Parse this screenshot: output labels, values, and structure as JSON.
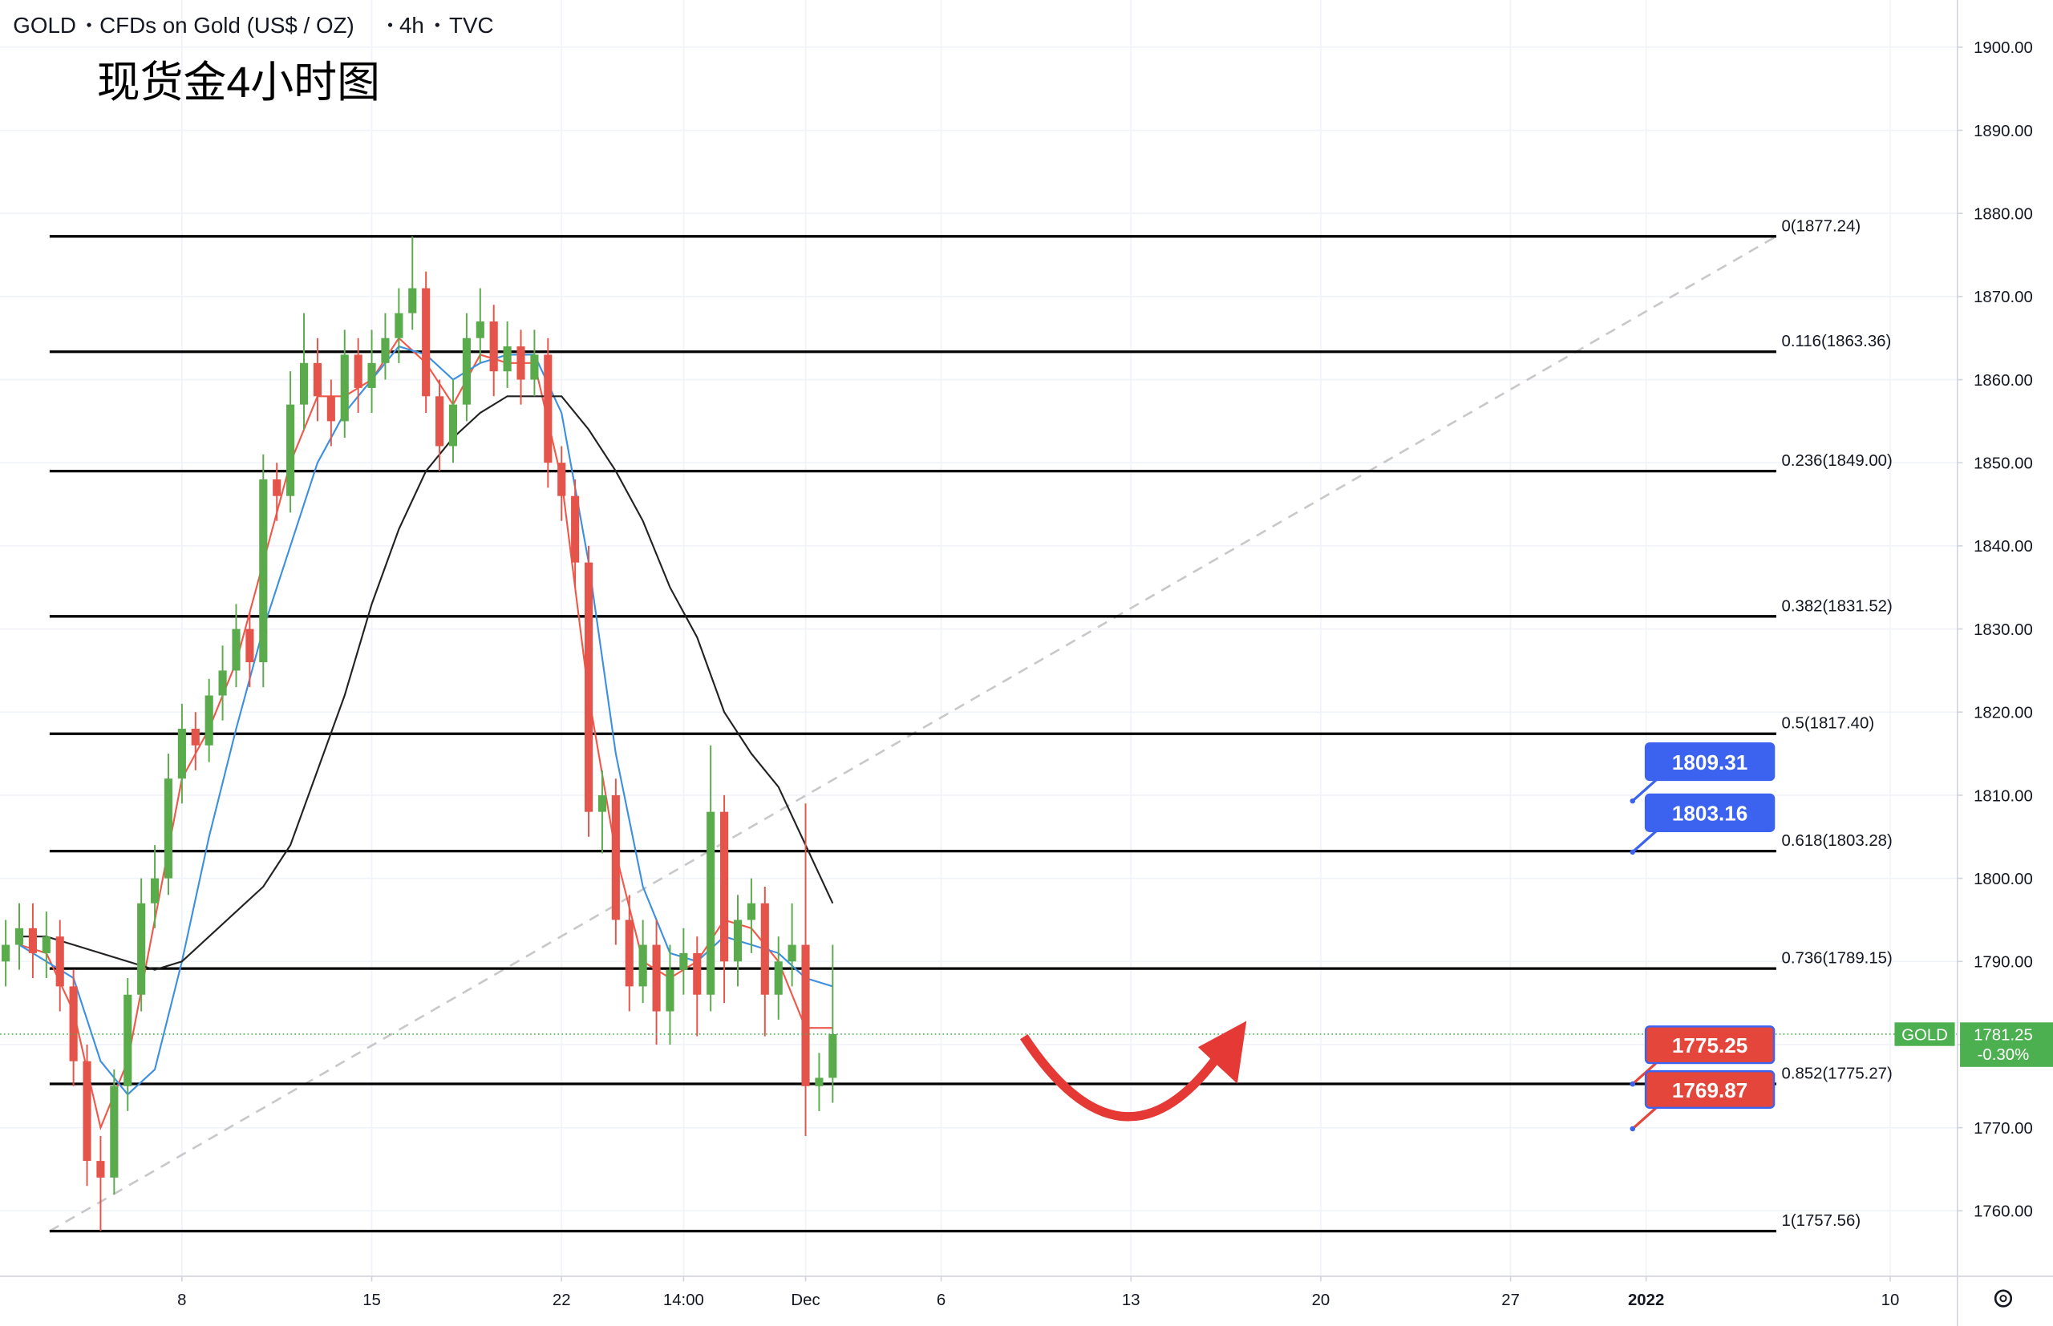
{
  "chart_data": {
    "type": "candlestick",
    "symbol": "GOLD",
    "description": "CFDs on Gold (US$ / OZ)",
    "interval": "4h",
    "source": "TVC",
    "title": "现货金4小时图",
    "x": [
      0.5,
      1,
      1.5,
      2,
      2.5,
      3,
      3.5,
      4,
      4.5,
      5,
      5.5,
      6,
      6.5,
      7,
      7.5,
      8,
      8.5,
      9,
      9.5,
      10,
      10.5,
      11,
      11.5,
      12,
      12.5,
      13,
      13.5,
      14,
      14.5,
      15,
      15.5,
      16,
      16.5,
      17,
      17.5,
      18,
      18.5,
      19,
      19.5,
      20,
      20.5,
      21,
      21.5,
      22,
      22.5,
      23,
      23.5,
      24,
      24.5,
      25,
      25.5,
      26,
      26.5,
      27,
      27.5,
      28,
      28.5,
      29,
      29.5,
      30,
      30.5,
      31
    ],
    "open": [
      1790,
      1792,
      1794,
      1791,
      1793,
      1787,
      1778,
      1766,
      1764,
      1775,
      1786,
      1797,
      1800,
      1812,
      1818,
      1816,
      1822,
      1825,
      1830,
      1826,
      1848,
      1846,
      1857,
      1862,
      1858,
      1855,
      1863,
      1859,
      1862,
      1865,
      1868,
      1871,
      1858,
      1852,
      1857,
      1865,
      1867,
      1861,
      1864,
      1860,
      1863,
      1850,
      1846,
      1838,
      1808,
      1810,
      1795,
      1787,
      1792,
      1784,
      1789,
      1791,
      1786,
      1808,
      1790,
      1795,
      1797,
      1786,
      1790,
      1792,
      1775,
      1776
    ],
    "high": [
      1795,
      1797,
      1797,
      1796,
      1795,
      1789,
      1780,
      1769,
      1777,
      1788,
      1800,
      1804,
      1815,
      1821,
      1820,
      1824,
      1828,
      1833,
      1832,
      1851,
      1850,
      1861,
      1868,
      1865,
      1860,
      1866,
      1865,
      1866,
      1868,
      1871,
      1877.24,
      1873,
      1860,
      1860,
      1868,
      1871,
      1869,
      1867,
      1866,
      1866,
      1865,
      1852,
      1848,
      1840,
      1813,
      1812,
      1798,
      1795,
      1795,
      1792,
      1794,
      1793,
      1816,
      1810,
      1798,
      1800,
      1799,
      1793,
      1797,
      1809,
      1779,
      1792
    ],
    "low": [
      1787,
      1789,
      1788,
      1788,
      1784,
      1775,
      1763,
      1757.56,
      1762,
      1772,
      1784,
      1794,
      1798,
      1809,
      1813,
      1814,
      1819,
      1823,
      1823,
      1823,
      1843,
      1844,
      1854,
      1855,
      1852,
      1853,
      1856,
      1856,
      1860,
      1862,
      1866,
      1856,
      1849,
      1850,
      1855,
      1862,
      1858,
      1859,
      1857,
      1858,
      1847,
      1843,
      1835,
      1805,
      1803,
      1792,
      1784,
      1785,
      1780,
      1780,
      1786,
      1781,
      1784,
      1785,
      1787,
      1791,
      1781,
      1783,
      1787,
      1769,
      1772,
      1773
    ],
    "close": [
      1792,
      1794,
      1791,
      1793,
      1787,
      1778,
      1766,
      1764,
      1775,
      1786,
      1797,
      1800,
      1812,
      1818,
      1816,
      1822,
      1825,
      1830,
      1826,
      1848,
      1846,
      1857,
      1862,
      1858,
      1855,
      1863,
      1859,
      1862,
      1865,
      1868,
      1871,
      1858,
      1852,
      1857,
      1865,
      1867,
      1861,
      1864,
      1860,
      1863,
      1850,
      1846,
      1838,
      1808,
      1810,
      1795,
      1787,
      1792,
      1784,
      1789,
      1791,
      1786,
      1808,
      1790,
      1795,
      1797,
      1786,
      1790,
      1792,
      1775,
      1776,
      1781.25
    ],
    "up_color": "#5aab4c",
    "down_color": "#e5544b",
    "series": [
      {
        "color": "#f0584a",
        "x": [
          1,
          2,
          3,
          4,
          5,
          6,
          7,
          8,
          9,
          10,
          11,
          12,
          13,
          14,
          15,
          16,
          17,
          18,
          19,
          20,
          21,
          22,
          23,
          24,
          25,
          26,
          27,
          28,
          29,
          30,
          31
        ],
        "values": [
          1792,
          1791,
          1784,
          1770,
          1778,
          1795,
          1812,
          1818,
          1826,
          1838,
          1850,
          1858,
          1858,
          1860,
          1865,
          1862,
          1857,
          1863,
          1862,
          1862,
          1848,
          1822,
          1803,
          1790,
          1788,
          1790,
          1795,
          1794,
          1790,
          1782,
          1782
        ]
      },
      {
        "color": "#3d8fe0",
        "x": [
          1,
          2,
          3,
          4,
          5,
          6,
          7,
          8,
          9,
          10,
          11,
          12,
          13,
          14,
          15,
          16,
          17,
          18,
          19,
          20,
          21,
          22,
          23,
          24,
          25,
          26,
          27,
          28,
          29,
          30,
          31
        ],
        "values": [
          1792,
          1790,
          1788,
          1778,
          1774,
          1777,
          1790,
          1805,
          1818,
          1830,
          1840,
          1850,
          1856,
          1860,
          1864,
          1863,
          1860,
          1862,
          1863,
          1863,
          1856,
          1838,
          1815,
          1799,
          1791,
          1790,
          1793,
          1792,
          1791,
          1788,
          1787
        ]
      },
      {
        "color": "#222222",
        "x": [
          1,
          2,
          3,
          4,
          5,
          6,
          7,
          8,
          9,
          10,
          11,
          12,
          13,
          14,
          15,
          16,
          17,
          18,
          19,
          20,
          21,
          22,
          23,
          24,
          25,
          26,
          27,
          28,
          29,
          30,
          31
        ],
        "values": [
          1793,
          1793,
          1792,
          1791,
          1790,
          1789,
          1790,
          1793,
          1796,
          1799,
          1804,
          1813,
          1822,
          1833,
          1842,
          1849,
          1853,
          1856,
          1858,
          1858,
          1858,
          1854,
          1849,
          1843,
          1835,
          1829,
          1820,
          1815,
          1811,
          1804,
          1797
        ]
      }
    ],
    "fib_x": [
      2.12,
      65.8
    ],
    "fib_levels": [
      {
        "value": 1877.24,
        "label": "0(1877.24)"
      },
      {
        "value": 1863.36,
        "label": "0.116(1863.36)"
      },
      {
        "value": 1849.0,
        "label": "0.236(1849.00)"
      },
      {
        "value": 1831.52,
        "label": "0.382(1831.52)"
      },
      {
        "value": 1817.4,
        "label": "0.5(1817.40)"
      },
      {
        "value": 1803.28,
        "label": "0.618(1803.28)"
      },
      {
        "value": 1789.15,
        "label": "0.736(1789.15)"
      },
      {
        "value": 1775.27,
        "label": "0.852(1775.27)"
      },
      {
        "value": 1757.56,
        "label": "1(1757.56)"
      }
    ],
    "trend_color": "#c8c8c8",
    "note_x": 60.5,
    "price_notes": [
      {
        "value": 1809.31,
        "color": "#3c63f0"
      },
      {
        "value": 1803.16,
        "color": "#3c63f0"
      },
      {
        "value": 1775.25,
        "color": "#e5463c"
      },
      {
        "value": 1769.87,
        "color": "#e5463c"
      }
    ],
    "last": {
      "name": "GOLD",
      "value": 1781.25,
      "change": {
        "value": -0.3,
        "label": "-0.30%"
      },
      "color": "#4caf50"
    },
    "xlim": [
      0.29,
      72.48
    ],
    "ylim": [
      1752.13,
      1905.67
    ],
    "xticks": [
      {
        "value": 7,
        "label": "8"
      },
      {
        "value": 14,
        "label": "15"
      },
      {
        "value": 21,
        "label": "22"
      },
      {
        "value": 25.5,
        "label": "14:00"
      },
      {
        "value": 30,
        "label": "Dec"
      },
      {
        "value": 35,
        "label": "6"
      },
      {
        "value": 42,
        "label": "13"
      },
      {
        "value": 49,
        "label": "20"
      },
      {
        "value": 56,
        "label": "27"
      },
      {
        "value": 61,
        "label": "2022"
      },
      {
        "value": 70,
        "label": "10"
      }
    ],
    "yticks": [
      {
        "value": 1760,
        "label": "1760.00"
      },
      {
        "value": 1770,
        "label": "1770.00"
      },
      {
        "value": 1780,
        "label": "1780.00"
      },
      {
        "value": 1790,
        "label": "1790.00"
      },
      {
        "value": 1800,
        "label": "1800.00"
      },
      {
        "value": 1810,
        "label": "1810.00"
      },
      {
        "value": 1820,
        "label": "1820.00"
      },
      {
        "value": 1830,
        "label": "1830.00"
      },
      {
        "value": 1840,
        "label": "1840.00"
      },
      {
        "value": 1850,
        "label": "1850.00"
      },
      {
        "value": 1860,
        "label": "1860.00"
      },
      {
        "value": 1870,
        "label": "1870.00"
      },
      {
        "value": 1880,
        "label": "1880.00"
      },
      {
        "value": 1890,
        "label": "1890.00"
      },
      {
        "value": 1900,
        "label": "1900.00"
      }
    ],
    "grid": true
  }
}
